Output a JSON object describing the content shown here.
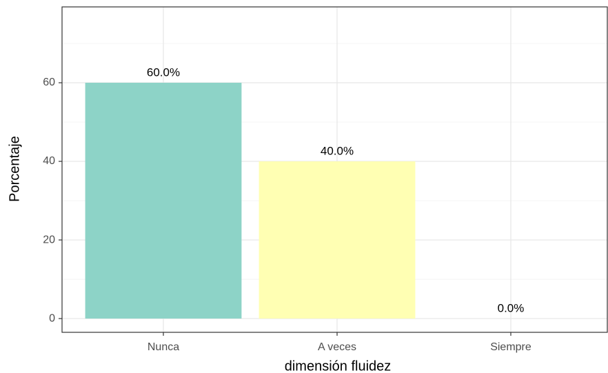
{
  "chart_data": {
    "type": "bar",
    "x_label": "dimensión fluidez",
    "y_label": "Porcentaje",
    "categories": [
      "Nunca",
      "A veces",
      "Siempre"
    ],
    "values": [
      60,
      40,
      0
    ],
    "value_labels": [
      "60.0%",
      "40.0%",
      "0.0%"
    ],
    "colors": [
      "#8DD3C7",
      "#FFFFB3",
      "#BEBADA"
    ],
    "ylim": [
      -3.5,
      79.3
    ],
    "yticks": [
      0,
      20,
      40,
      60
    ],
    "grid": true
  }
}
